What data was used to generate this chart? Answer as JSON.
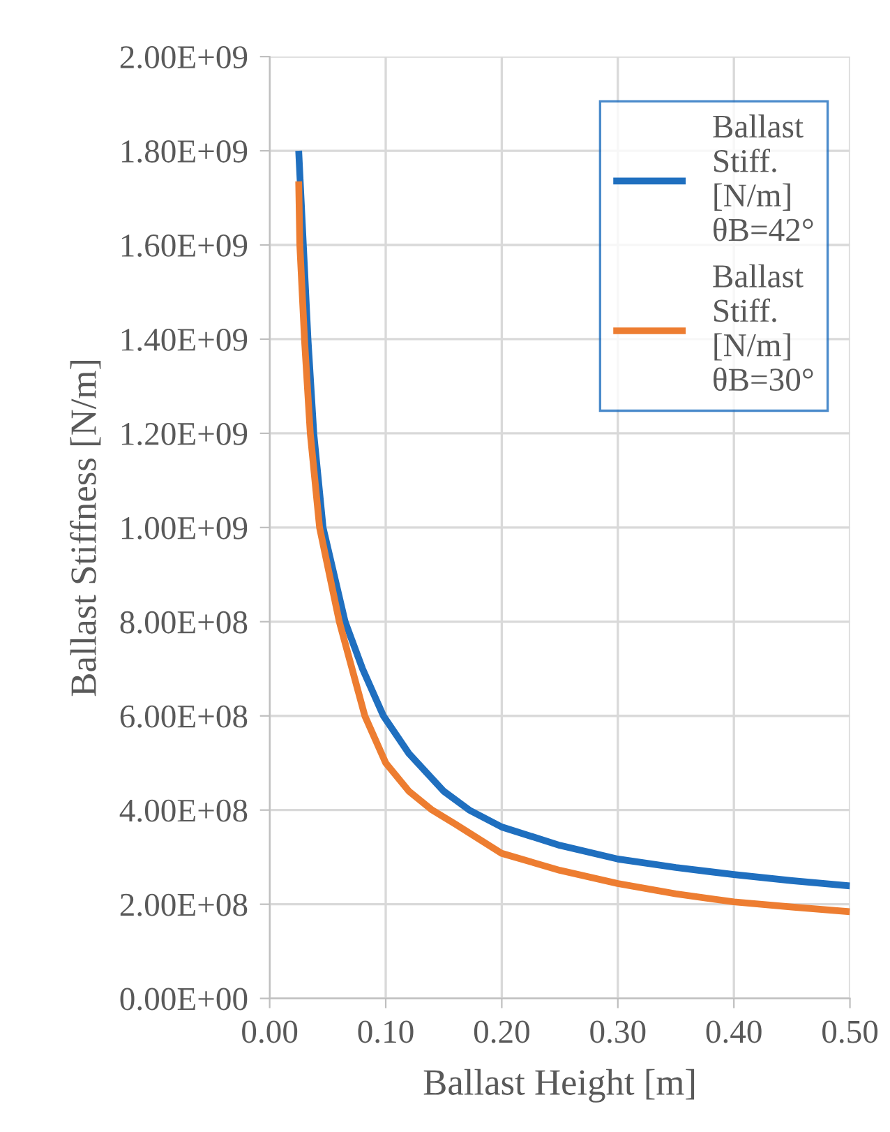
{
  "chart_data": {
    "type": "line",
    "xlabel": "Ballast Height [m]",
    "ylabel": "Ballast Stiffness [N/m]",
    "series": [
      {
        "name": "Ballast Stiff. [N/m] θB=42°",
        "color": "#1f6fbf",
        "x": [
          0.025,
          0.029,
          0.033,
          0.038,
          0.046,
          0.065,
          0.08,
          0.098,
          0.12,
          0.15,
          0.172,
          0.2,
          0.25,
          0.3,
          0.35,
          0.4,
          0.45,
          0.5
        ],
        "values": [
          1800000000,
          1600000000,
          1400000000,
          1200000000,
          1000000000,
          800000000,
          700000000,
          600000000,
          520000000,
          440000000,
          400000000,
          364000000,
          325000000,
          296000000,
          278000000,
          263000000,
          250000000,
          239000000
        ]
      },
      {
        "name": "Ballast Stiff. [N/m] θB=30°",
        "color": "#ed7d31",
        "x": [
          0.025,
          0.026,
          0.03,
          0.035,
          0.043,
          0.06,
          0.082,
          0.1,
          0.12,
          0.14,
          0.16,
          0.2,
          0.25,
          0.3,
          0.35,
          0.4,
          0.45,
          0.5
        ],
        "values": [
          1735000000,
          1600000000,
          1400000000,
          1200000000,
          1000000000,
          800000000,
          600000000,
          500000000,
          440000000,
          400000000,
          370000000,
          308000000,
          272000000,
          244000000,
          222000000,
          205000000,
          194000000,
          184000000
        ]
      }
    ],
    "xlim": [
      0,
      0.5
    ],
    "xticks": [
      {
        "value": 0,
        "label": "0.00"
      },
      {
        "value": 0.1,
        "label": "0.10"
      },
      {
        "value": 0.2,
        "label": "0.20"
      },
      {
        "value": 0.3,
        "label": "0.30"
      },
      {
        "value": 0.4,
        "label": "0.40"
      },
      {
        "value": 0.5,
        "label": "0.50"
      }
    ],
    "ylim": [
      0,
      2000000000
    ],
    "yticks": [
      {
        "value": 0,
        "label": "0.00E+00"
      },
      {
        "value": 200000000,
        "label": "2.00E+08"
      },
      {
        "value": 400000000,
        "label": "4.00E+08"
      },
      {
        "value": 600000000,
        "label": "6.00E+08"
      },
      {
        "value": 800000000,
        "label": "8.00E+08"
      },
      {
        "value": 1000000000,
        "label": "1.00E+09"
      },
      {
        "value": 1200000000,
        "label": "1.20E+09"
      },
      {
        "value": 1400000000,
        "label": "1.40E+09"
      },
      {
        "value": 1600000000,
        "label": "1.60E+09"
      },
      {
        "value": 1800000000,
        "label": "1.80E+09"
      },
      {
        "value": 2000000000,
        "label": "2.00E+09"
      }
    ],
    "grid": true,
    "legend": "top right",
    "marker": "none",
    "line_style": "solid"
  }
}
